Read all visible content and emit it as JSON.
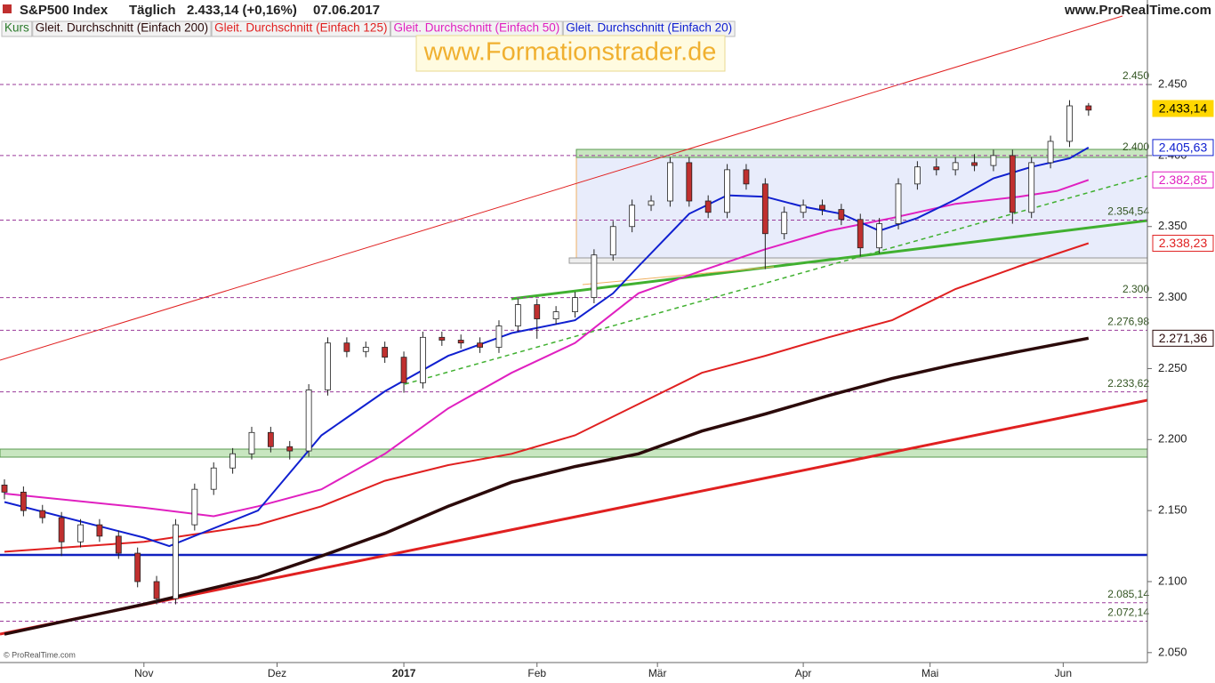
{
  "chart_data": {
    "type": "candlestick",
    "header": {
      "symbol": "S&P500 Index",
      "period": "Täglich",
      "quote": "2.433,14 (+0,16%)",
      "date": "07.06.2017",
      "source": "www.ProRealTime.com"
    },
    "watermark": "www.Formationstrader.de",
    "copyright": "© ProRealTime.com",
    "legend_price": "Kurs",
    "xlim": [
      0,
      180
    ],
    "xticks": [
      {
        "value": 22,
        "label": "Nov"
      },
      {
        "value": 43,
        "label": "Dez"
      },
      {
        "value": 63,
        "label": "2017"
      },
      {
        "value": 84,
        "label": "Feb"
      },
      {
        "value": 103,
        "label": "Mär"
      },
      {
        "value": 126,
        "label": "Apr"
      },
      {
        "value": 146,
        "label": "Mai"
      },
      {
        "value": 167,
        "label": "Jun"
      }
    ],
    "ylim": [
      2043,
      2497
    ],
    "yticks": [
      {
        "value": 2050,
        "label": "2.050"
      },
      {
        "value": 2100,
        "label": "2.100"
      },
      {
        "value": 2150,
        "label": "2.150"
      },
      {
        "value": 2200,
        "label": "2.200"
      },
      {
        "value": 2250,
        "label": "2.250"
      },
      {
        "value": 2300,
        "label": "2.300"
      },
      {
        "value": 2350,
        "label": "2.350"
      },
      {
        "value": 2400,
        "label": "2.400"
      },
      {
        "value": 2450,
        "label": "2.450"
      }
    ],
    "levels": [
      {
        "value": 2450,
        "label": "2.450"
      },
      {
        "value": 2400,
        "label": "2.400"
      },
      {
        "value": 2354.54,
        "label": "2.354,54"
      },
      {
        "value": 2300,
        "label": "2.300"
      },
      {
        "value": 2276.98,
        "label": "2.276,98"
      },
      {
        "value": 2233.62,
        "label": "2.233,62"
      },
      {
        "value": 2085.14,
        "label": "2.085,14"
      },
      {
        "value": 2072.14,
        "label": "2.072,14"
      }
    ],
    "current": {
      "value": 2433.14,
      "label": "2.433,14",
      "color": "#ffd700"
    },
    "candles": {
      "up_color": "#ffffff",
      "down_color": "#c0302f",
      "x": [
        0,
        3,
        6,
        9,
        12,
        15,
        18,
        21,
        24,
        27,
        30,
        33,
        36,
        39,
        42,
        45,
        48,
        51,
        54,
        57,
        60,
        63,
        66,
        69,
        72,
        75,
        78,
        81,
        84,
        87,
        90,
        93,
        96,
        99,
        102,
        105,
        108,
        111,
        114,
        117,
        120,
        123,
        126,
        129,
        132,
        135,
        138,
        141,
        144,
        147,
        150,
        153,
        156,
        159,
        162,
        165,
        168,
        171
      ],
      "open": [
        2168,
        2163,
        2150,
        2145,
        2128,
        2140,
        2132,
        2120,
        2100,
        2088,
        2140,
        2165,
        2180,
        2190,
        2205,
        2195,
        2192,
        2235,
        2268,
        2262,
        2265,
        2258,
        2240,
        2272,
        2270,
        2268,
        2265,
        2280,
        2295,
        2285,
        2290,
        2300,
        2330,
        2350,
        2365,
        2368,
        2395,
        2368,
        2360,
        2390,
        2380,
        2345,
        2360,
        2365,
        2362,
        2355,
        2335,
        2352,
        2380,
        2392,
        2390,
        2395,
        2393,
        2400,
        2360,
        2395,
        2410,
        2435
      ],
      "high": [
        2172,
        2167,
        2154,
        2149,
        2144,
        2144,
        2136,
        2124,
        2104,
        2144,
        2169,
        2184,
        2194,
        2209,
        2209,
        2199,
        2239,
        2272,
        2272,
        2269,
        2269,
        2262,
        2276,
        2276,
        2274,
        2272,
        2284,
        2299,
        2299,
        2294,
        2304,
        2334,
        2354,
        2369,
        2372,
        2399,
        2399,
        2372,
        2394,
        2394,
        2384,
        2364,
        2369,
        2369,
        2366,
        2359,
        2356,
        2384,
        2396,
        2398,
        2399,
        2401,
        2404,
        2404,
        2399,
        2414,
        2439,
        2437
      ],
      "low": [
        2158,
        2146,
        2141,
        2118,
        2124,
        2128,
        2116,
        2096,
        2084,
        2084,
        2136,
        2161,
        2176,
        2186,
        2191,
        2186,
        2188,
        2231,
        2258,
        2258,
        2254,
        2233,
        2236,
        2266,
        2264,
        2261,
        2261,
        2276,
        2271,
        2281,
        2286,
        2296,
        2326,
        2346,
        2361,
        2364,
        2364,
        2356,
        2356,
        2376,
        2320,
        2341,
        2356,
        2358,
        2351,
        2329,
        2331,
        2348,
        2376,
        2386,
        2386,
        2389,
        2389,
        2352,
        2356,
        2391,
        2406,
        2428
      ],
      "close": [
        2163,
        2150,
        2145,
        2128,
        2140,
        2132,
        2120,
        2100,
        2088,
        2140,
        2165,
        2180,
        2190,
        2205,
        2195,
        2192,
        2235,
        2268,
        2262,
        2265,
        2258,
        2240,
        2272,
        2270,
        2268,
        2265,
        2280,
        2295,
        2285,
        2290,
        2300,
        2330,
        2350,
        2365,
        2368,
        2395,
        2368,
        2360,
        2390,
        2380,
        2345,
        2360,
        2365,
        2362,
        2355,
        2335,
        2352,
        2380,
        2392,
        2390,
        2395,
        2393,
        2400,
        2360,
        2395,
        2410,
        2435,
        2432
      ]
    },
    "series": [
      {
        "name": "Gleit. Durchschnitt (Einfach 200)",
        "color": "#2b0a0a",
        "width": 3.5,
        "x": [
          0,
          22,
          40,
          50,
          60,
          70,
          80,
          90,
          100,
          110,
          120,
          130,
          140,
          150,
          160,
          171
        ],
        "values": [
          2063,
          2084,
          2103,
          2118,
          2134,
          2153,
          2170,
          2181,
          2190,
          2206,
          2218,
          2231,
          2243,
          2253,
          2262,
          2271.36
        ],
        "value_label": "2.271,36"
      },
      {
        "name": "Gleit. Durchschnitt (Einfach 125)",
        "color": "#e02020",
        "width": 2,
        "x": [
          0,
          22,
          40,
          50,
          60,
          70,
          80,
          90,
          100,
          110,
          120,
          130,
          140,
          150,
          160,
          171
        ],
        "values": [
          2121,
          2128,
          2140,
          2153,
          2171,
          2182,
          2190,
          2203,
          2225,
          2247,
          2259,
          2272,
          2284,
          2306,
          2322,
          2338.23
        ],
        "value_label": "2.338,23"
      },
      {
        "name": "Gleit. Durchschnitt (Einfach 50)",
        "color": "#e020c0",
        "width": 2,
        "x": [
          0,
          22,
          33,
          40,
          50,
          60,
          70,
          80,
          90,
          100,
          110,
          120,
          130,
          140,
          150,
          160,
          166,
          171
        ],
        "values": [
          2162,
          2152,
          2146,
          2153,
          2165,
          2190,
          2222,
          2247,
          2268,
          2303,
          2319,
          2334,
          2347,
          2356,
          2366,
          2371,
          2375,
          2382.85
        ],
        "value_label": "2.382,85"
      },
      {
        "name": "Gleit. Durchschnitt (Einfach 20)",
        "color": "#1020d0",
        "width": 2,
        "x": [
          0,
          22,
          26,
          40,
          50,
          60,
          70,
          80,
          90,
          96,
          100,
          108,
          114,
          120,
          126,
          132,
          138,
          144,
          150,
          156,
          162,
          168,
          171
        ],
        "values": [
          2156,
          2131,
          2125,
          2150,
          2203,
          2234,
          2259,
          2275,
          2284,
          2303,
          2322,
          2359,
          2372,
          2371,
          2364,
          2359,
          2347,
          2356,
          2369,
          2384,
          2392,
          2398,
          2405.63
        ],
        "value_label": "2.405,63"
      }
    ]
  }
}
